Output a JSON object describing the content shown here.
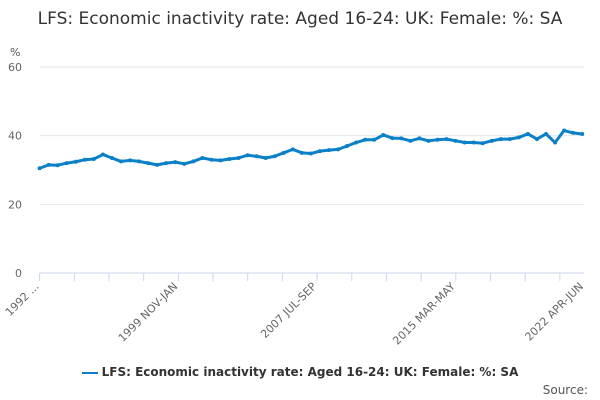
{
  "chart_data": {
    "type": "line",
    "title": "LFS: Economic inactivity rate: Aged 16-24: UK: Female: %: SA",
    "ylabel": "%",
    "ylim": [
      0,
      60
    ],
    "yticks": [
      0,
      20,
      40,
      60
    ],
    "grid": true,
    "legend_position": "bottom",
    "color": "#0a80c8",
    "x_tick_labels": [
      "1992 ...",
      "1999 NOV-JAN",
      "2007 JUL-SEP",
      "2015 MAR-MAY",
      "2022 APR-JUN"
    ],
    "x_start": "1992 MAR-MAY",
    "x_end": "2022 APR-JUN",
    "series": [
      {
        "name": "LFS: Economic inactivity rate: Aged 16-24: UK: Female: %: SA",
        "x_year": [
          1992.3,
          1992.8,
          1993.3,
          1993.8,
          1994.3,
          1994.8,
          1995.3,
          1995.8,
          1996.3,
          1996.8,
          1997.3,
          1997.8,
          1998.3,
          1998.8,
          1999.3,
          1999.8,
          2000.3,
          2000.8,
          2001.3,
          2001.8,
          2002.3,
          2002.8,
          2003.3,
          2003.8,
          2004.3,
          2004.8,
          2005.3,
          2005.8,
          2006.3,
          2006.8,
          2007.3,
          2007.8,
          2008.3,
          2008.8,
          2009.3,
          2009.8,
          2010.3,
          2010.8,
          2011.3,
          2011.8,
          2012.3,
          2012.8,
          2013.3,
          2013.8,
          2014.3,
          2014.8,
          2015.3,
          2015.8,
          2016.3,
          2016.8,
          2017.3,
          2017.8,
          2018.3,
          2018.8,
          2019.3,
          2019.8,
          2020.3,
          2020.8,
          2021.3,
          2021.8,
          2022.3
        ],
        "values": [
          30.5,
          31.5,
          31.4,
          32,
          32.4,
          33,
          33.2,
          34.5,
          33.5,
          32.5,
          32.8,
          32.5,
          32,
          31.5,
          32,
          32.3,
          31.8,
          32.5,
          33.5,
          33,
          32.8,
          33.2,
          33.5,
          34.3,
          34,
          33.5,
          34,
          35,
          36,
          35,
          34.8,
          35.5,
          35.8,
          36,
          37,
          38,
          38.8,
          38.8,
          40.2,
          39.3,
          39.2,
          38.5,
          39.2,
          38.5,
          38.8,
          39,
          38.5,
          38,
          38,
          37.8,
          38.5,
          39,
          39,
          39.5,
          40.5,
          39,
          40.5,
          38,
          41.5,
          40.8,
          40.5
        ]
      }
    ]
  },
  "legend": {
    "label": "LFS: Economic inactivity rate: Aged 16-24: UK: Female: %: SA"
  },
  "source_label": "Source:"
}
